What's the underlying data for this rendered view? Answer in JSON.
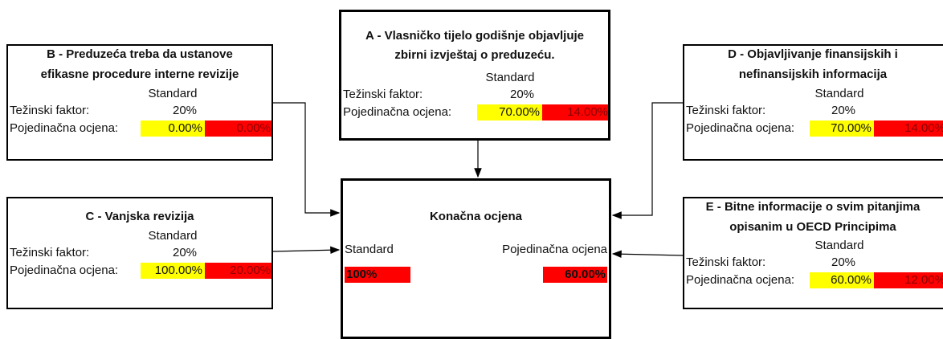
{
  "boxes": [
    {
      "title": [
        "A - Vlasničko tijelo godišnje objavljuje",
        "zbirni izvještaj o preduzeću."
      ],
      "standard_label": "Standard",
      "weight_label": "Težinski faktor:",
      "weight": "20%",
      "score_label": "Pojedinačna ocjena:",
      "score": "70.00%",
      "weighted": "14.00%"
    },
    {
      "title": [
        "B - Preduzeća treba da ustanove",
        "efikasne procedure interne revizije"
      ],
      "standard_label": "Standard",
      "weight_label": "Težinski faktor:",
      "weight": "20%",
      "score_label": "Pojedinačna ocjena:",
      "score": "0.00%",
      "weighted": "0.00%"
    },
    {
      "title": [
        "C - Vanjska revizija"
      ],
      "standard_label": "Standard",
      "weight_label": "Težinski faktor:",
      "weight": "20%",
      "score_label": "Pojedinačna ocjena:",
      "score": "100.00%",
      "weighted": "20.00%"
    },
    {
      "title": [
        "D - Objavljivanje finansijskih i",
        "nefinansijskih informacija"
      ],
      "standard_label": "Standard",
      "weight_label": "Težinski faktor:",
      "weight": "20%",
      "score_label": "Pojedinačna ocjena:",
      "score": "70.00%",
      "weighted": "14.00%"
    },
    {
      "title": [
        "E - Bitne informacije o svim pitanjima",
        "opisanim u OECD Principima"
      ],
      "standard_label": "Standard",
      "weight_label": "Težinski faktor:",
      "weight": "20%",
      "score_label": "Pojedinačna ocjena:",
      "score": "60.00%",
      "weighted": "12.00%"
    }
  ],
  "final": {
    "title": "Konačna ocjena",
    "standard_label": "Standard",
    "score_label": "Pojedinačna ocjena",
    "standard": "100%",
    "score": "60.00%"
  }
}
